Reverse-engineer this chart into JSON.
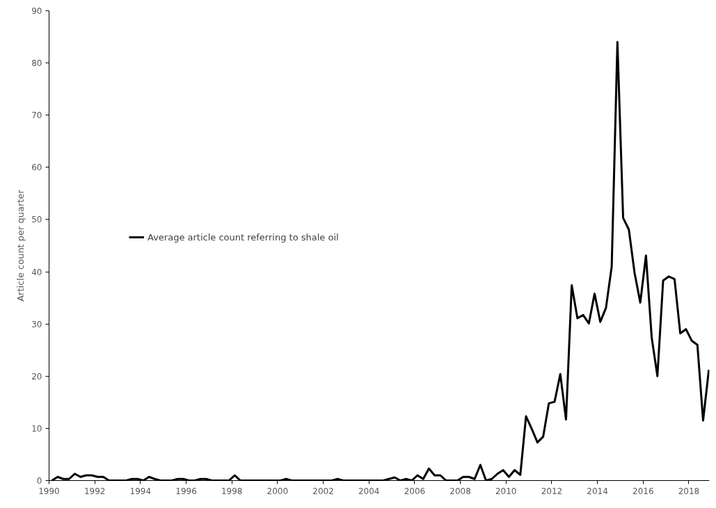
{
  "chart_data": {
    "type": "line",
    "ylabel": "Article count per quarter",
    "xlim": [
      1990,
      2018.9
    ],
    "xticks": [
      1990,
      1992,
      1994,
      1996,
      1998,
      2000,
      2002,
      2004,
      2006,
      2008,
      2010,
      2012,
      2014,
      2016,
      2018
    ],
    "ylim": [
      0,
      90
    ],
    "yticks": [
      0,
      10,
      20,
      30,
      40,
      50,
      60,
      70,
      80,
      90
    ],
    "grid": false,
    "legend": "left",
    "marker": "none",
    "line_style": "solid",
    "series": [
      {
        "name": "Average article count referring to shale oil",
        "color": "#000000",
        "x": [
          1990.125,
          1990.375,
          1990.625,
          1990.875,
          1991.125,
          1991.375,
          1991.625,
          1991.875,
          1992.125,
          1992.375,
          1992.625,
          1992.875,
          1993.125,
          1993.375,
          1993.625,
          1993.875,
          1994.125,
          1994.375,
          1994.625,
          1994.875,
          1995.125,
          1995.375,
          1995.625,
          1995.875,
          1996.125,
          1996.375,
          1996.625,
          1996.875,
          1997.125,
          1997.375,
          1997.625,
          1997.875,
          1998.125,
          1998.375,
          1998.625,
          1998.875,
          1999.125,
          1999.375,
          1999.625,
          1999.875,
          2000.125,
          2000.375,
          2000.625,
          2000.875,
          2001.125,
          2001.375,
          2001.625,
          2001.875,
          2002.125,
          2002.375,
          2002.625,
          2002.875,
          2003.125,
          2003.375,
          2003.625,
          2003.875,
          2004.125,
          2004.375,
          2004.625,
          2004.875,
          2005.125,
          2005.375,
          2005.625,
          2005.875,
          2006.125,
          2006.375,
          2006.625,
          2006.875,
          2007.125,
          2007.375,
          2007.625,
          2007.875,
          2008.125,
          2008.375,
          2008.625,
          2008.875,
          2009.125,
          2009.375,
          2009.625,
          2009.875,
          2010.125,
          2010.375,
          2010.625,
          2010.875,
          2011.125,
          2011.375,
          2011.625,
          2011.875,
          2012.125,
          2012.375,
          2012.625,
          2012.875,
          2013.125,
          2013.375,
          2013.625,
          2013.875,
          2014.125,
          2014.375,
          2014.625,
          2014.875,
          2015.125,
          2015.375,
          2015.625,
          2015.875,
          2016.125,
          2016.375,
          2016.625,
          2016.875,
          2017.125,
          2017.375,
          2017.625,
          2017.875,
          2018.125,
          2018.375,
          2018.625,
          2018.875
        ],
        "values": [
          0,
          0.7,
          0.3,
          0.3,
          1.3,
          0.7,
          1.0,
          1.0,
          0.7,
          0.7,
          0,
          0,
          0,
          0,
          0.3,
          0.3,
          0,
          0.7,
          0.3,
          0,
          0,
          0,
          0.3,
          0.3,
          0,
          0,
          0.3,
          0.3,
          0,
          0,
          0,
          0,
          1.0,
          0,
          0,
          0,
          0,
          0,
          0,
          0,
          0,
          0.3,
          0,
          0,
          0,
          0,
          0,
          0,
          0,
          0,
          0.3,
          0,
          0,
          0,
          0,
          0,
          0,
          0,
          0,
          0.3,
          0.6,
          0,
          0.3,
          0,
          1.0,
          0.3,
          2.3,
          1.0,
          1.0,
          0,
          0,
          0,
          0.7,
          0.7,
          0.3,
          3.0,
          0,
          0.3,
          1.3,
          2.0,
          0.7,
          2.0,
          1.1,
          12.3,
          9.9,
          7.3,
          8.4,
          14.8,
          15.1,
          20.4,
          11.7,
          37.4,
          31.1,
          31.7,
          30.1,
          35.8,
          30.4,
          33.1,
          41.0,
          84.0,
          50.3,
          48.1,
          39.8,
          34.1,
          43.1,
          27.4,
          20.0,
          38.3,
          39.1,
          38.6,
          28.2,
          29.0,
          26.8,
          26.0,
          11.5,
          21.2
        ]
      }
    ]
  }
}
